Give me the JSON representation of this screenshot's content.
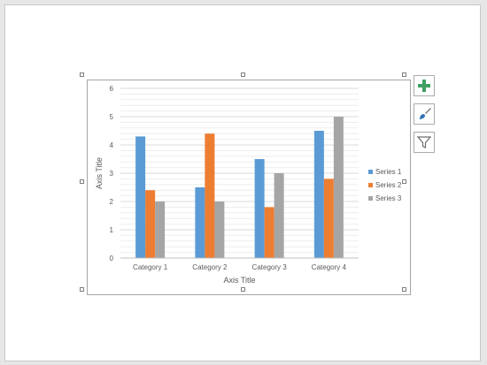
{
  "toolbar": {
    "buttons": [
      {
        "name": "chart-elements-button",
        "icon": "plus-icon"
      },
      {
        "name": "chart-styles-button",
        "icon": "paintbrush-icon"
      },
      {
        "name": "chart-filters-button",
        "icon": "funnel-icon"
      }
    ]
  },
  "colors": {
    "series1": "#5b9bd5",
    "series2": "#ed7d31",
    "series3": "#a5a5a5",
    "plus": "#3f9f62"
  },
  "chart_data": {
    "type": "bar",
    "title": "",
    "xlabel": "Axis Title",
    "ylabel": "Axis Title",
    "ylim": [
      0,
      6
    ],
    "yticks": [
      "0",
      "1",
      "2",
      "3",
      "4",
      "5",
      "6"
    ],
    "categories": [
      "Category 1",
      "Category 2",
      "Category 3",
      "Category 4"
    ],
    "series": [
      {
        "name": "Series 1",
        "values": [
          4.3,
          2.5,
          3.5,
          4.5
        ]
      },
      {
        "name": "Series 2",
        "values": [
          2.4,
          4.4,
          1.8,
          2.8
        ]
      },
      {
        "name": "Series 3",
        "values": [
          2,
          2,
          3,
          5
        ]
      }
    ],
    "grid": true,
    "legend": "right"
  }
}
